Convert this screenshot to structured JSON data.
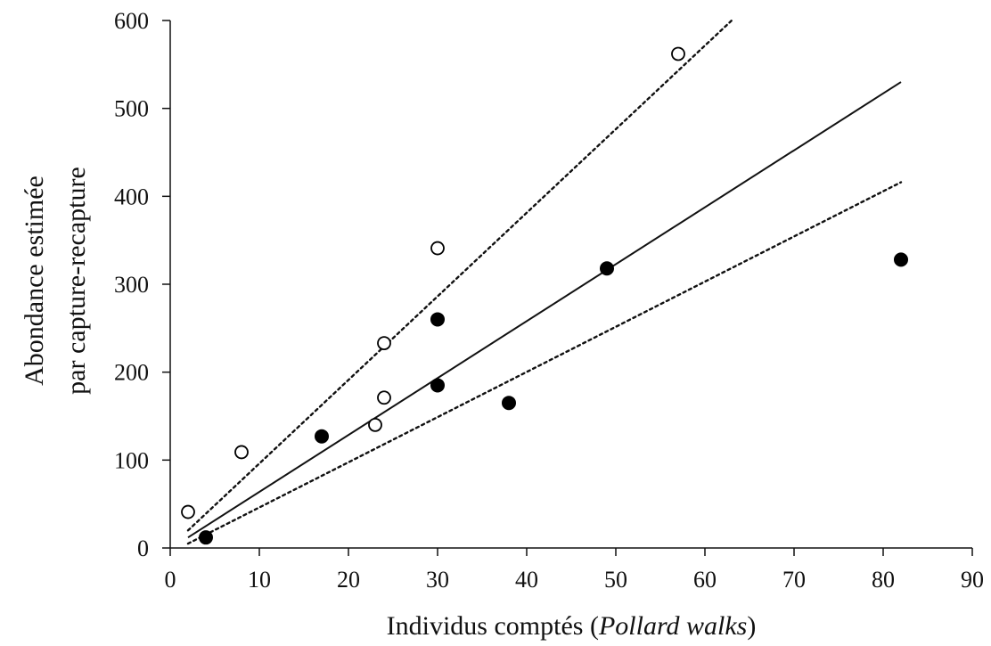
{
  "chart_data": {
    "type": "scatter",
    "xlabel_parts": [
      "Individus comptés (",
      "Pollard walks",
      ")"
    ],
    "ylabel_lines": [
      "Abondance estimée",
      "par capture-recapture"
    ],
    "xlim": [
      0,
      90
    ],
    "ylim": [
      0,
      600
    ],
    "x_ticks": [
      0,
      10,
      20,
      30,
      40,
      50,
      60,
      70,
      80,
      90
    ],
    "y_ticks": [
      0,
      100,
      200,
      300,
      400,
      500,
      600
    ],
    "grid": false,
    "legend": "none",
    "series": [
      {
        "marker": "filled-circle",
        "color": "#000000",
        "points": [
          [
            4,
            12
          ],
          [
            17,
            127
          ],
          [
            30,
            185
          ],
          [
            30,
            260
          ],
          [
            38,
            165
          ],
          [
            49,
            318
          ],
          [
            82,
            328
          ]
        ]
      },
      {
        "marker": "open-circle",
        "color": "#000000",
        "points": [
          [
            2,
            41
          ],
          [
            8,
            109
          ],
          [
            23,
            140
          ],
          [
            24,
            171
          ],
          [
            24,
            233
          ],
          [
            30,
            341
          ],
          [
            57,
            562
          ]
        ]
      }
    ],
    "lines": [
      {
        "style": "solid",
        "points": [
          [
            2,
            12
          ],
          [
            82,
            530
          ]
        ]
      },
      {
        "style": "dotted",
        "points": [
          [
            2,
            20
          ],
          [
            63,
            600
          ]
        ]
      },
      {
        "style": "dotted",
        "points": [
          [
            2,
            5
          ],
          [
            82,
            416
          ]
        ]
      }
    ]
  }
}
